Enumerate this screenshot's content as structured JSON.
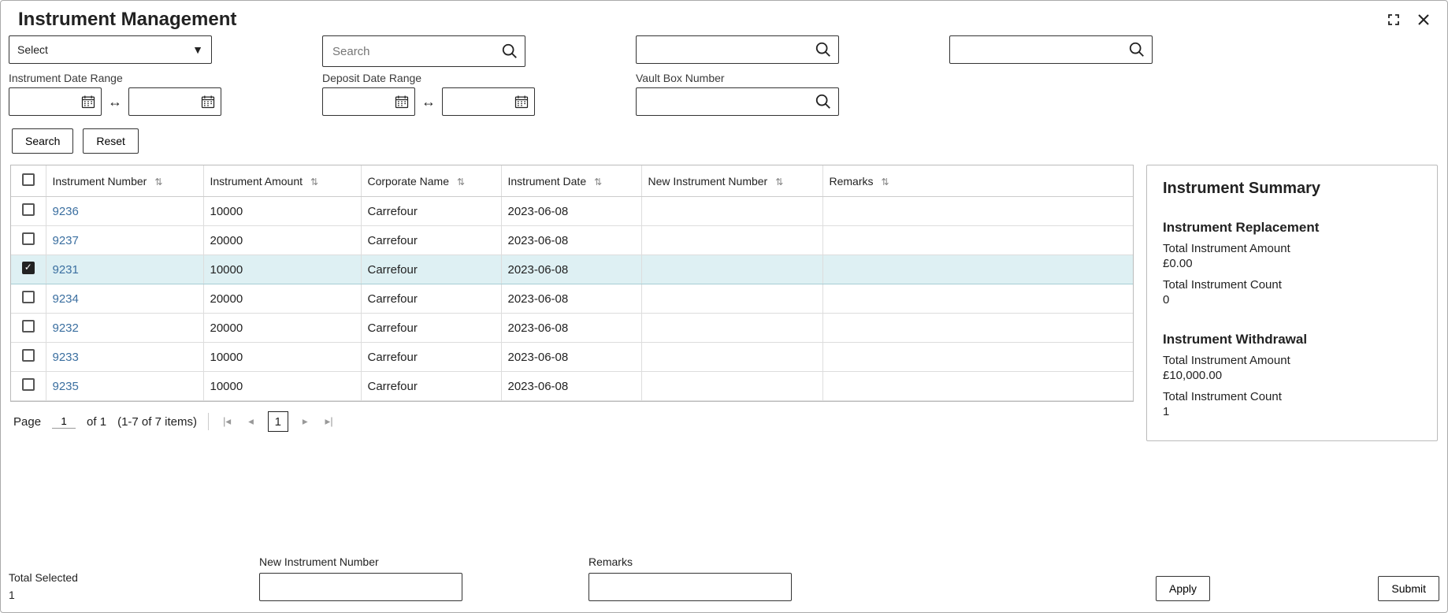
{
  "window": {
    "title": "Instrument Management"
  },
  "filters": {
    "select_placeholder": "Select",
    "search_placeholder": "Search",
    "instrument_date_label": "Instrument Date Range",
    "deposit_date_label": "Deposit Date Range",
    "vault_box_label": "Vault Box Number",
    "search_btn": "Search",
    "reset_btn": "Reset"
  },
  "table": {
    "headers": {
      "instrument_number": "Instrument Number",
      "instrument_amount": "Instrument Amount",
      "corporate_name": "Corporate Name",
      "instrument_date": "Instrument Date",
      "new_instrument_number": "New Instrument Number",
      "remarks": "Remarks"
    },
    "rows": [
      {
        "checked": false,
        "num": "9236",
        "amt": "10000",
        "corp": "Carrefour",
        "date": "2023-06-08",
        "new": "",
        "rem": ""
      },
      {
        "checked": false,
        "num": "9237",
        "amt": "20000",
        "corp": "Carrefour",
        "date": "2023-06-08",
        "new": "",
        "rem": ""
      },
      {
        "checked": true,
        "num": "9231",
        "amt": "10000",
        "corp": "Carrefour",
        "date": "2023-06-08",
        "new": "",
        "rem": ""
      },
      {
        "checked": false,
        "num": "9234",
        "amt": "20000",
        "corp": "Carrefour",
        "date": "2023-06-08",
        "new": "",
        "rem": ""
      },
      {
        "checked": false,
        "num": "9232",
        "amt": "20000",
        "corp": "Carrefour",
        "date": "2023-06-08",
        "new": "",
        "rem": ""
      },
      {
        "checked": false,
        "num": "9233",
        "amt": "10000",
        "corp": "Carrefour",
        "date": "2023-06-08",
        "new": "",
        "rem": ""
      },
      {
        "checked": false,
        "num": "9235",
        "amt": "10000",
        "corp": "Carrefour",
        "date": "2023-06-08",
        "new": "",
        "rem": ""
      }
    ]
  },
  "pagination": {
    "page_label": "Page",
    "current_page": "1",
    "of_label": "of 1",
    "items_label": "(1-7 of 7 items)",
    "page_number": "1"
  },
  "summary": {
    "title": "Instrument Summary",
    "replacement": {
      "title": "Instrument Replacement",
      "amount_label": "Total Instrument Amount",
      "amount_value": "£0.00",
      "count_label": "Total Instrument Count",
      "count_value": "0"
    },
    "withdrawal": {
      "title": "Instrument Withdrawal",
      "amount_label": "Total Instrument Amount",
      "amount_value": "£10,000.00",
      "count_label": "Total Instrument Count",
      "count_value": "1"
    }
  },
  "footer": {
    "total_selected_label": "Total Selected",
    "total_selected_value": "1",
    "new_instrument_label": "New Instrument Number",
    "remarks_label": "Remarks",
    "apply_btn": "Apply",
    "submit_btn": "Submit"
  },
  "colors": {
    "link": "#3b6fa0",
    "selected_row_bg": "#def0f3",
    "border": "#bbbbbb"
  }
}
